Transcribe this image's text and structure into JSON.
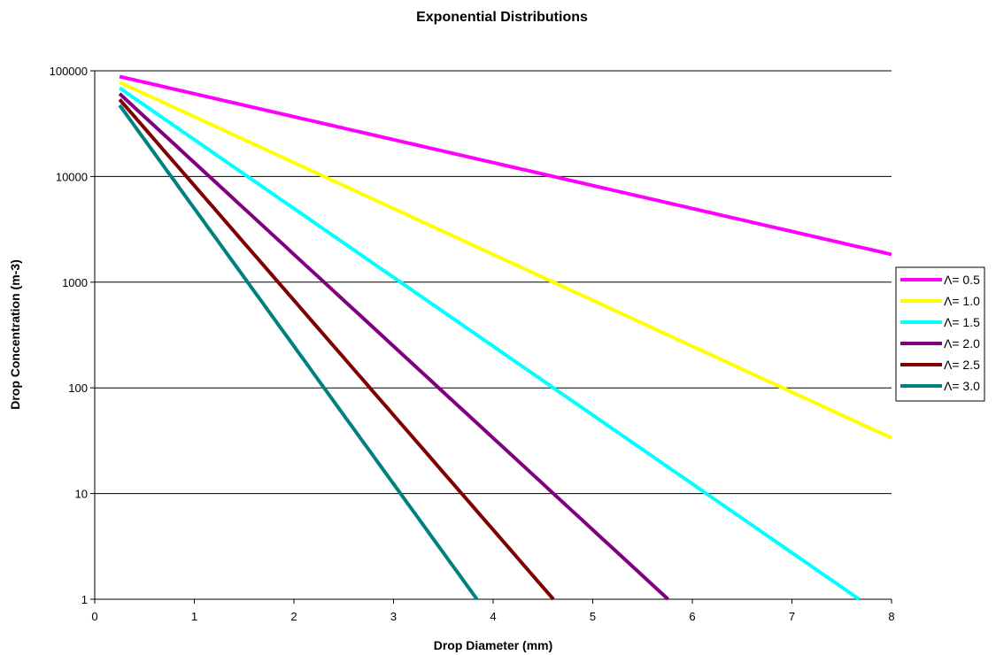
{
  "chart_data": {
    "type": "line",
    "title": "Exponential Distributions",
    "xlabel": "Drop Diameter (mm)",
    "ylabel": "Drop Concentration (m-3)",
    "xlim": [
      0,
      8
    ],
    "ylim": [
      1,
      100000
    ],
    "yscale": "log",
    "grid": "horizontal",
    "legend": "right",
    "x_ticks": [
      "0",
      "1",
      "2",
      "3",
      "4",
      "5",
      "6",
      "7",
      "8"
    ],
    "y_ticks": [
      "1",
      "10",
      "100",
      "1000",
      "10000",
      "100000"
    ],
    "N0": 100000,
    "x_start": 0.25,
    "series": [
      {
        "name": "Λ= 0.5",
        "lambda": 0.5,
        "color": "#ff00ff",
        "points": [
          [
            0.25,
            88250
          ],
          [
            8,
            1832
          ]
        ]
      },
      {
        "name": "Λ= 1.0",
        "lambda": 1.0,
        "color": "#ffff00",
        "points": [
          [
            0.25,
            77880
          ],
          [
            8,
            34
          ]
        ]
      },
      {
        "name": "Λ= 1.5",
        "lambda": 1.5,
        "color": "#00ffff",
        "points": [
          [
            0.25,
            68730
          ],
          [
            7.68,
            1
          ]
        ]
      },
      {
        "name": "Λ= 2.0",
        "lambda": 2.0,
        "color": "#800080",
        "points": [
          [
            0.25,
            60650
          ],
          [
            5.76,
            1
          ]
        ]
      },
      {
        "name": "Λ= 2.5",
        "lambda": 2.5,
        "color": "#800000",
        "points": [
          [
            0.25,
            53530
          ],
          [
            4.61,
            1
          ]
        ]
      },
      {
        "name": "Λ= 3.0",
        "lambda": 3.0,
        "color": "#008080",
        "points": [
          [
            0.25,
            47240
          ],
          [
            3.84,
            1
          ]
        ]
      }
    ]
  }
}
